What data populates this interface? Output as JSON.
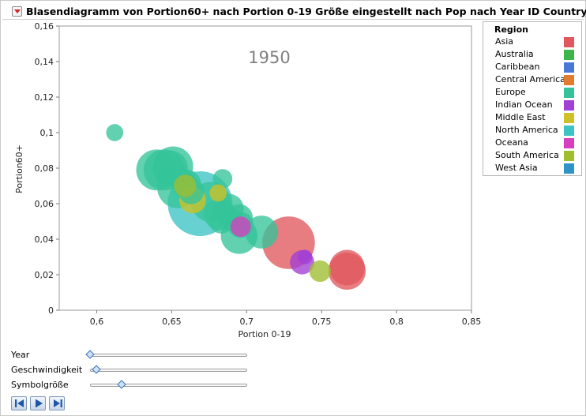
{
  "window": {
    "title": "Blasendiagramm von Portion60+ nach Portion 0-19 Größe eingestellt nach Pop nach Year ID Country"
  },
  "chart_data": {
    "type": "scatter",
    "subtype": "bubble",
    "title": "",
    "annotation": "1950",
    "xlabel": "Portion 0-19",
    "ylabel": "Portion60+",
    "xlim": [
      0.575,
      0.85
    ],
    "ylim": [
      0,
      0.16
    ],
    "x_ticks": [
      0.6,
      0.65,
      0.7,
      0.75,
      0.8,
      0.85
    ],
    "x_tick_labels": [
      "0,6",
      "0,65",
      "0,7",
      "0,75",
      "0,8",
      "0,85"
    ],
    "y_ticks": [
      0,
      0.02,
      0.04,
      0.06,
      0.08,
      0.1,
      0.12,
      0.14,
      0.16
    ],
    "y_tick_labels": [
      "0",
      "0,02",
      "0,04",
      "0,06",
      "0,08",
      "0,1",
      "0,12",
      "0,14",
      "0,16"
    ],
    "grid": false,
    "legend_position": "right",
    "points": [
      {
        "x": 0.669,
        "y": 0.06,
        "size": 1.0,
        "region": "North America"
      },
      {
        "x": 0.728,
        "y": 0.038,
        "size": 0.66,
        "region": "Asia"
      },
      {
        "x": 0.767,
        "y": 0.022,
        "size": 0.33,
        "region": "Asia"
      },
      {
        "x": 0.767,
        "y": 0.024,
        "size": 0.3,
        "region": "Asia"
      },
      {
        "x": 0.64,
        "y": 0.079,
        "size": 0.4,
        "region": "Europe"
      },
      {
        "x": 0.645,
        "y": 0.079,
        "size": 0.4,
        "region": "Europe"
      },
      {
        "x": 0.651,
        "y": 0.081,
        "size": 0.38,
        "region": "Europe"
      },
      {
        "x": 0.654,
        "y": 0.069,
        "size": 0.4,
        "region": "Europe"
      },
      {
        "x": 0.676,
        "y": 0.061,
        "size": 0.38,
        "region": "Europe"
      },
      {
        "x": 0.695,
        "y": 0.042,
        "size": 0.32,
        "region": "Europe"
      },
      {
        "x": 0.71,
        "y": 0.044,
        "size": 0.26,
        "region": "Europe"
      },
      {
        "x": 0.682,
        "y": 0.054,
        "size": 0.24,
        "region": "Europe"
      },
      {
        "x": 0.688,
        "y": 0.057,
        "size": 0.22,
        "region": "Europe"
      },
      {
        "x": 0.695,
        "y": 0.052,
        "size": 0.18,
        "region": "Europe"
      },
      {
        "x": 0.696,
        "y": 0.048,
        "size": 0.16,
        "region": "Europe"
      },
      {
        "x": 0.683,
        "y": 0.05,
        "size": 0.14,
        "region": "Europe"
      },
      {
        "x": 0.69,
        "y": 0.051,
        "size": 0.12,
        "region": "Europe"
      },
      {
        "x": 0.66,
        "y": 0.071,
        "size": 0.2,
        "region": "Europe"
      },
      {
        "x": 0.649,
        "y": 0.08,
        "size": 0.3,
        "region": "Europe"
      },
      {
        "x": 0.663,
        "y": 0.067,
        "size": 0.16,
        "region": "Europe"
      },
      {
        "x": 0.684,
        "y": 0.074,
        "size": 0.09,
        "region": "Europe"
      },
      {
        "x": 0.612,
        "y": 0.1,
        "size": 0.07,
        "region": "Europe"
      },
      {
        "x": 0.664,
        "y": 0.062,
        "size": 0.17,
        "region": "Middle East"
      },
      {
        "x": 0.681,
        "y": 0.066,
        "size": 0.07,
        "region": "Middle East"
      },
      {
        "x": 0.696,
        "y": 0.047,
        "size": 0.1,
        "region": "Oceana"
      },
      {
        "x": 0.737,
        "y": 0.027,
        "size": 0.14,
        "region": "Indian Ocean"
      },
      {
        "x": 0.739,
        "y": 0.03,
        "size": 0.05,
        "region": "Indian Ocean"
      },
      {
        "x": 0.749,
        "y": 0.022,
        "size": 0.11,
        "region": "South America"
      },
      {
        "x": 0.659,
        "y": 0.07,
        "size": 0.12,
        "region": "South America"
      }
    ]
  },
  "legend": {
    "title": "Region",
    "items": [
      {
        "label": "Asia",
        "color": "#e0575e"
      },
      {
        "label": "Australia",
        "color": "#3cb64a"
      },
      {
        "label": "Caribbean",
        "color": "#4a78d8"
      },
      {
        "label": "Central America",
        "color": "#e07b30"
      },
      {
        "label": "Europe",
        "color": "#35c49a"
      },
      {
        "label": "Indian Ocean",
        "color": "#a23fd6"
      },
      {
        "label": "Middle East",
        "color": "#cfc125"
      },
      {
        "label": "North America",
        "color": "#3cc4c4"
      },
      {
        "label": "Oceana",
        "color": "#d63fbf"
      },
      {
        "label": "South America",
        "color": "#9fbe2f"
      },
      {
        "label": "West Asia",
        "color": "#2f93c8"
      }
    ]
  },
  "sliders": [
    {
      "label": "Year",
      "value": 0.0
    },
    {
      "label": "Geschwindigkeit",
      "value": 0.04
    },
    {
      "label": "Symbolgröße",
      "value": 0.2
    }
  ],
  "controls": {
    "icons": [
      "step-back-icon",
      "play-icon",
      "step-forward-icon"
    ]
  }
}
